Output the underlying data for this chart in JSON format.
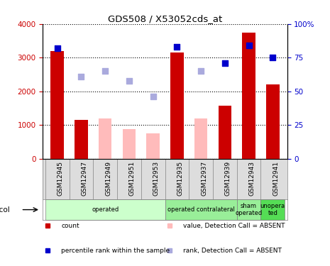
{
  "title": "GDS508 / X53052cds_at",
  "samples": [
    "GSM12945",
    "GSM12947",
    "GSM12949",
    "GSM12951",
    "GSM12953",
    "GSM12935",
    "GSM12937",
    "GSM12939",
    "GSM12943",
    "GSM12941"
  ],
  "count_values": [
    3200,
    1150,
    null,
    null,
    null,
    3150,
    null,
    1580,
    3750,
    2200
  ],
  "count_absent": [
    null,
    null,
    1200,
    870,
    750,
    null,
    1200,
    null,
    null,
    null
  ],
  "rank_present_pct": [
    82,
    null,
    null,
    null,
    null,
    83,
    null,
    71,
    84,
    75
  ],
  "rank_absent_pct": [
    null,
    61,
    65,
    58,
    46,
    null,
    65,
    null,
    null,
    null
  ],
  "ylim_left": [
    0,
    4000
  ],
  "ylim_right": [
    0,
    100
  ],
  "yticks_left": [
    0,
    1000,
    2000,
    3000,
    4000
  ],
  "yticks_right": [
    0,
    25,
    50,
    75,
    100
  ],
  "ytick_labels_left": [
    "0",
    "1000",
    "2000",
    "3000",
    "4000"
  ],
  "ytick_labels_right": [
    "0",
    "25",
    "50",
    "75",
    "100%"
  ],
  "color_count": "#cc0000",
  "color_count_absent": "#ffbbbb",
  "color_rank_present": "#0000cc",
  "color_rank_absent": "#aaaadd",
  "protocol_groups": [
    {
      "label": "operated",
      "start": 0,
      "end": 5,
      "color": "#ccffcc"
    },
    {
      "label": "operated contralateral",
      "start": 5,
      "end": 8,
      "color": "#99ee99"
    },
    {
      "label": "sham\noperated",
      "start": 8,
      "end": 9,
      "color": "#99ee99"
    },
    {
      "label": "unopera\nted",
      "start": 9,
      "end": 10,
      "color": "#55dd55"
    }
  ],
  "legend_items": [
    {
      "label": "count",
      "color": "#cc0000"
    },
    {
      "label": "percentile rank within the sample",
      "color": "#0000cc"
    },
    {
      "label": "value, Detection Call = ABSENT",
      "color": "#ffbbbb"
    },
    {
      "label": "rank, Detection Call = ABSENT",
      "color": "#aaaadd"
    }
  ],
  "bg_color": "#ffffff",
  "xtick_bg": "#dddddd"
}
